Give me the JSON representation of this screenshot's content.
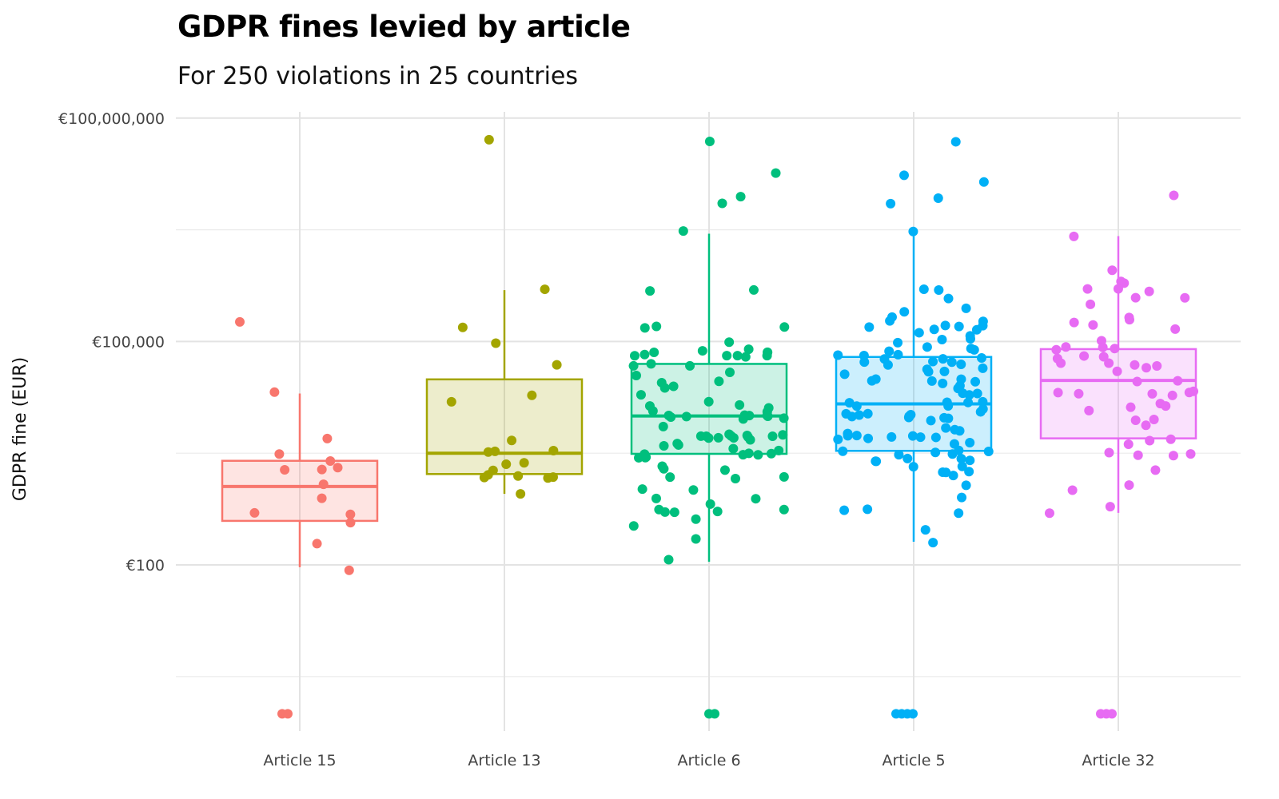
{
  "chart_data": {
    "type": "boxplot",
    "title": "GDPR fines levied by article",
    "subtitle": "For 250 violations in 25 countries",
    "xlabel": "",
    "ylabel": "GDPR fine (EUR)",
    "y_scale": "log10",
    "ylim": [
      0.6,
      130000000
    ],
    "y_ticks": [
      100,
      100000,
      100000000
    ],
    "y_tick_labels": [
      "€100",
      "€100,000",
      "€100,000,000"
    ],
    "grid": true,
    "categories": [
      "Article 15",
      "Article 13",
      "Article 6",
      "Article 5",
      "Article 32"
    ],
    "colors": [
      "#F8766D",
      "#A3A500",
      "#00BF7D",
      "#00B0F6",
      "#E76BF3"
    ],
    "series": [
      {
        "box": {
          "whisker_low": 93,
          "q1": 390,
          "median": 1130,
          "q3": 2500,
          "whisker_high": 20000
        },
        "points": [
          195000,
          20000,
          5000,
          3200,
          2500,
          1950,
          1950,
          1950,
          1130,
          780,
          500,
          500,
          380,
          195,
          90,
          1,
          1
        ]
      },
      {
        "box": {
          "whisker_low": 900,
          "q1": 1660,
          "median": 3160,
          "q3": 31000,
          "whisker_high": 490000
        },
        "points": [
          50000000,
          490000,
          150000,
          92000,
          49000,
          20000,
          15000,
          4700,
          3200,
          3200,
          3200,
          2500,
          2140,
          1800,
          1600,
          1500,
          1500,
          1500,
          1500,
          900
        ]
      },
      {
        "box": {
          "whisker_low": 110,
          "q1": 3100,
          "median": 10000,
          "q3": 50000,
          "whisker_high": 2800000
        },
        "points": [
          50000000,
          18000000,
          8500000,
          7000000,
          3000000,
          520000,
          500000,
          150000,
          150000,
          150000,
          93000,
          76000,
          76000,
          76000,
          76000,
          76000,
          62000,
          62000,
          62000,
          62000,
          62000,
          62000,
          50000,
          50000,
          50000,
          41000,
          37000,
          30000,
          30000,
          24000,
          24000,
          20000,
          14500,
          14500,
          14500,
          12000,
          12000,
          12000,
          10000,
          10000,
          10000,
          10000,
          10000,
          10000,
          10000,
          10000,
          9000,
          7000,
          6000,
          6000,
          5100,
          5100,
          5100,
          5100,
          5100,
          5100,
          5100,
          5100,
          5100,
          5100,
          4100,
          4100,
          4100,
          3600,
          3200,
          3200,
          3200,
          3200,
          3200,
          3200,
          2600,
          2600,
          2600,
          2000,
          2000,
          2000,
          1500,
          1500,
          1500,
          1000,
          1000,
          830,
          830,
          620,
          520,
          520,
          520,
          520,
          520,
          400,
          310,
          210,
          125,
          1,
          1
        ]
      },
      {
        "box": {
          "whisker_low": 205,
          "q1": 3400,
          "median": 14500,
          "q3": 62000,
          "whisker_high": 2800000
        },
        "points": [
          50000000,
          18000000,
          14500000,
          8500000,
          7000000,
          3000000,
          520000,
          500000,
          400000,
          300000,
          250000,
          200000,
          200000,
          200000,
          170000,
          170000,
          150000,
          150000,
          150000,
          150000,
          130000,
          120000,
          105000,
          105000,
          92000,
          81000,
          81000,
          76000,
          76000,
          62000,
          62000,
          62000,
          62000,
          62000,
          62000,
          50000,
          50000,
          50000,
          50000,
          50000,
          44000,
          44000,
          41000,
          37000,
          37000,
          30000,
          30000,
          30000,
          30000,
          27000,
          27000,
          24000,
          24000,
          20000,
          20000,
          20000,
          14500,
          14500,
          14500,
          14500,
          14500,
          14500,
          12000,
          12000,
          10000,
          10000,
          10000,
          10000,
          10000,
          10000,
          10000,
          9300,
          9300,
          9300,
          7000,
          7000,
          6000,
          6000,
          5100,
          5100,
          5100,
          5100,
          5100,
          5100,
          5100,
          5100,
          4100,
          4100,
          3200,
          3200,
          3200,
          3200,
          3200,
          3200,
          2600,
          2600,
          2600,
          2600,
          2600,
          2200,
          2200,
          1700,
          1700,
          1700,
          1700,
          1200,
          800,
          520,
          520,
          520,
          310,
          210,
          1,
          1,
          1,
          1
        ]
      },
      {
        "box": {
          "whisker_low": 500,
          "q1": 5000,
          "median": 30000,
          "q3": 79000,
          "whisker_high": 2600000
        },
        "points": [
          9600000,
          2600000,
          890000,
          630000,
          630000,
          490000,
          490000,
          490000,
          390000,
          390000,
          320000,
          200000,
          200000,
          170000,
          170000,
          150000,
          100000,
          79000,
          79000,
          79000,
          79000,
          62000,
          62000,
          62000,
          49000,
          49000,
          49000,
          49000,
          42000,
          42000,
          30000,
          30000,
          20000,
          20000,
          20000,
          20000,
          20000,
          20000,
          14000,
          14000,
          14000,
          11000,
          9000,
          9000,
          7000,
          5000,
          5000,
          4000,
          3000,
          3000,
          3000,
          3000,
          2000,
          1200,
          970,
          600,
          500,
          1,
          1,
          1
        ]
      }
    ]
  }
}
